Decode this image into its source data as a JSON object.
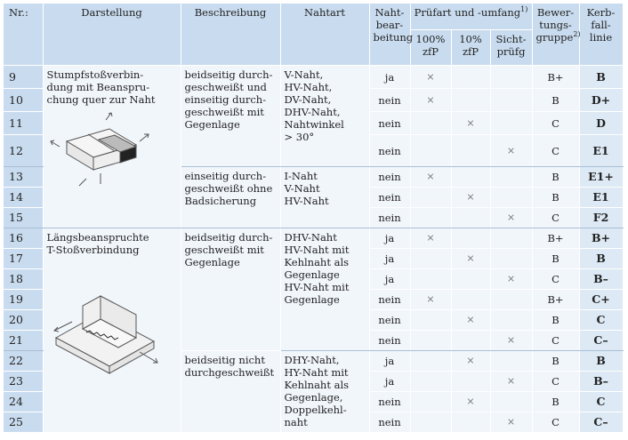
{
  "header": {
    "nr": "Nr.:",
    "darstellung": "Darstellung",
    "beschreibung": "Beschreibung",
    "nahtart": "Nahtart",
    "nahtbearbeitung_1": "Naht-",
    "nahtbearbeitung_2": "bear-",
    "nahtbearbeitung_3": "beitung",
    "pruefart": "Prüfart und -umfang",
    "pruefart_note": "1)",
    "p100_1": "100%",
    "p100_2": "zfP",
    "p10_1": "10%",
    "p10_2": "zfP",
    "sicht_1": "Sicht-",
    "sicht_2": "prüfg",
    "bew_1": "Bewer-",
    "bew_2": "tungs-",
    "bew_3": "gruppe",
    "bew_note": "2)",
    "kerb_1": "Kerb-",
    "kerb_2": "fall-",
    "kerb_3": "linie"
  },
  "groups": {
    "stumpf_darstellung_1": "Stumpfstoßverbin-",
    "stumpf_darstellung_2": "dung mit Beanspru-",
    "stumpf_darstellung_3": "chung quer zur Naht",
    "laengs_darstellung_1": "Längsbeanspruchte",
    "laengs_darstellung_2": "T-Stoßverbindung",
    "desc_a_1": "beidseitig durch-",
    "desc_a_2": "geschweißt und",
    "desc_a_3": "einseitig durch-",
    "desc_a_4": "geschweißt mit",
    "desc_a_5": "Gegenlage",
    "desc_b_1": "einseitig durch-",
    "desc_b_2": "geschweißt ohne",
    "desc_b_3": "Badsicherung",
    "desc_c_1": "beidseitig durch-",
    "desc_c_2": "geschweißt mit",
    "desc_c_3": "Gegenlage",
    "desc_d_1": "beidseitig nicht",
    "desc_d_2": "durchgeschweißt",
    "naht_a_1": "V-Naht,",
    "naht_a_2": "HV-Naht,",
    "naht_a_3": "DV-Naht,",
    "naht_a_4": "DHV-Naht,",
    "naht_a_5": "Nahtwinkel",
    "naht_a_6": "> 30°",
    "naht_b_1": "I-Naht",
    "naht_b_2": "V-Naht",
    "naht_b_3": "HV-Naht",
    "naht_c_1": "DHV-Naht",
    "naht_c_2": "HV-Naht mit",
    "naht_c_3": "Kehlnaht als",
    "naht_c_4": "Gegenlage",
    "naht_c_5": "HV-Naht mit",
    "naht_c_6": "Gegenlage",
    "naht_d_1": "DHY-Naht,",
    "naht_d_2": "HY-Naht mit",
    "naht_d_3": "Kehlnaht als",
    "naht_d_4": "Gegenlage,",
    "naht_d_5": "Doppelkehl-",
    "naht_d_6": "naht"
  },
  "mark_symbol": "×",
  "rows": [
    {
      "nr": "9",
      "bearb": "ja",
      "p100": true,
      "p10": false,
      "sicht": false,
      "bew": "B+",
      "kerb": "B"
    },
    {
      "nr": "10",
      "bearb": "nein",
      "p100": true,
      "p10": false,
      "sicht": false,
      "bew": "B",
      "kerb": "D+"
    },
    {
      "nr": "11",
      "bearb": "nein",
      "p100": false,
      "p10": true,
      "sicht": false,
      "bew": "C",
      "kerb": "D"
    },
    {
      "nr": "12",
      "bearb": "nein",
      "p100": false,
      "p10": false,
      "sicht": true,
      "bew": "C",
      "kerb": "E1"
    },
    {
      "nr": "13",
      "bearb": "nein",
      "p100": true,
      "p10": false,
      "sicht": false,
      "bew": "B",
      "kerb": "E1+"
    },
    {
      "nr": "14",
      "bearb": "nein",
      "p100": false,
      "p10": true,
      "sicht": false,
      "bew": "B",
      "kerb": "E1"
    },
    {
      "nr": "15",
      "bearb": "nein",
      "p100": false,
      "p10": false,
      "sicht": true,
      "bew": "C",
      "kerb": "F2"
    },
    {
      "nr": "16",
      "bearb": "ja",
      "p100": true,
      "p10": false,
      "sicht": false,
      "bew": "B+",
      "kerb": "B+"
    },
    {
      "nr": "17",
      "bearb": "ja",
      "p100": false,
      "p10": true,
      "sicht": false,
      "bew": "B",
      "kerb": "B"
    },
    {
      "nr": "18",
      "bearb": "ja",
      "p100": false,
      "p10": false,
      "sicht": true,
      "bew": "C",
      "kerb": "B–"
    },
    {
      "nr": "19",
      "bearb": "nein",
      "p100": true,
      "p10": false,
      "sicht": false,
      "bew": "B+",
      "kerb": "C+"
    },
    {
      "nr": "20",
      "bearb": "nein",
      "p100": false,
      "p10": true,
      "sicht": false,
      "bew": "B",
      "kerb": "C"
    },
    {
      "nr": "21",
      "bearb": "nein",
      "p100": false,
      "p10": false,
      "sicht": true,
      "bew": "C",
      "kerb": "C–"
    },
    {
      "nr": "22",
      "bearb": "ja",
      "p100": false,
      "p10": true,
      "sicht": false,
      "bew": "B",
      "kerb": "B"
    },
    {
      "nr": "23",
      "bearb": "ja",
      "p100": false,
      "p10": false,
      "sicht": true,
      "bew": "C",
      "kerb": "B–"
    },
    {
      "nr": "24",
      "bearb": "nein",
      "p100": false,
      "p10": true,
      "sicht": false,
      "bew": "B",
      "kerb": "C"
    },
    {
      "nr": "25",
      "bearb": "nein",
      "p100": false,
      "p10": false,
      "sicht": true,
      "bew": "C",
      "kerb": "C–"
    }
  ]
}
